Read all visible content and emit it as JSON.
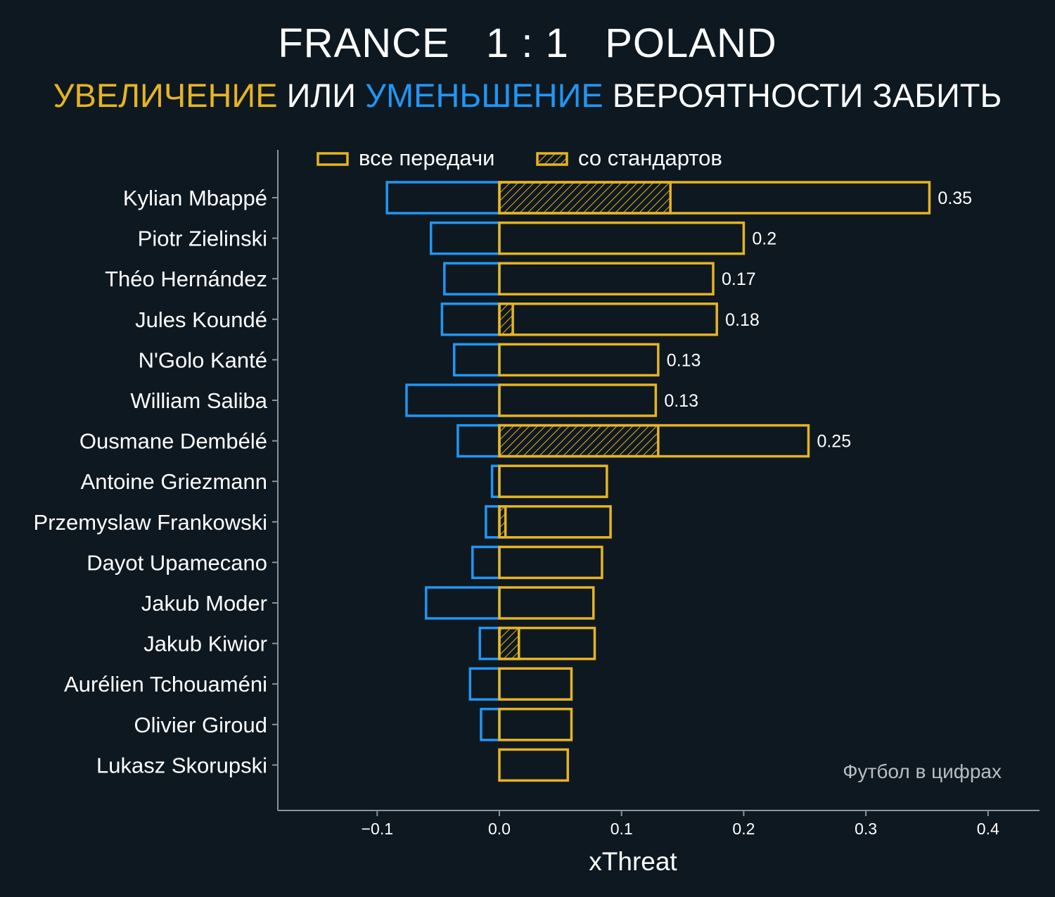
{
  "header": {
    "title": "FRANCE   1 : 1   POLAND",
    "subtitle_increase": "УВЕЛИЧЕНИЕ",
    "subtitle_or": " ИЛИ ",
    "subtitle_decrease": "УМЕНЬШЕНИЕ",
    "subtitle_rest": " ВЕРОЯТНОСТИ ЗАБИТЬ"
  },
  "colors": {
    "background": "#0e1820",
    "increase": "#e6b422",
    "decrease": "#2196f3",
    "axis": "#8a9399",
    "text": "#ffffff",
    "watermark": "#b8bec2"
  },
  "watermark": "Футбол в цифрах",
  "chart_data": {
    "type": "bar",
    "orientation": "horizontal",
    "xlabel": "xThreat",
    "xlim": [
      -0.18,
      0.44
    ],
    "xticks": [
      -0.1,
      0.0,
      0.1,
      0.2,
      0.3,
      0.4
    ],
    "xtick_labels": [
      "−0.1",
      "0.0",
      "0.1",
      "0.2",
      "0.3",
      "0.4"
    ],
    "legend": {
      "position": "top",
      "entries": [
        "все передачи",
        "со стандартов"
      ]
    },
    "categories": [
      "Kylian Mbappé",
      "Piotr Zielinski",
      "Théo Hernández",
      "Jules Koundé",
      "N'Golo Kanté",
      "William Saliba",
      "Ousmane Dembélé",
      "Antoine Griezmann",
      "Przemyslaw Frankowski",
      "Dayot Upamecano",
      "Jakub Moder",
      "Jakub Kiwior",
      "Aurélien Tchouaméni",
      "Olivier Giroud",
      "Lukasz Skorupski"
    ],
    "series": [
      {
        "name": "все передачи (увеличение)",
        "values": [
          0.352,
          0.2,
          0.175,
          0.178,
          0.13,
          0.128,
          0.253,
          0.088,
          0.091,
          0.084,
          0.077,
          0.078,
          0.059,
          0.059,
          0.056
        ]
      },
      {
        "name": "со стандартов",
        "values": [
          0.14,
          0,
          0,
          0.011,
          0,
          0,
          0.13,
          0,
          0.005,
          0,
          0,
          0.016,
          0,
          0,
          0
        ]
      },
      {
        "name": "уменьшение",
        "values": [
          -0.092,
          -0.056,
          -0.045,
          -0.047,
          -0.037,
          -0.076,
          -0.034,
          -0.006,
          -0.011,
          -0.022,
          -0.06,
          -0.016,
          -0.024,
          -0.015,
          0
        ]
      }
    ],
    "value_labels": [
      "0.35",
      "0.2",
      "0.17",
      "0.18",
      "0.13",
      "0.13",
      "0.25",
      "",
      "",
      "",
      "",
      "",
      "",
      "",
      ""
    ]
  }
}
